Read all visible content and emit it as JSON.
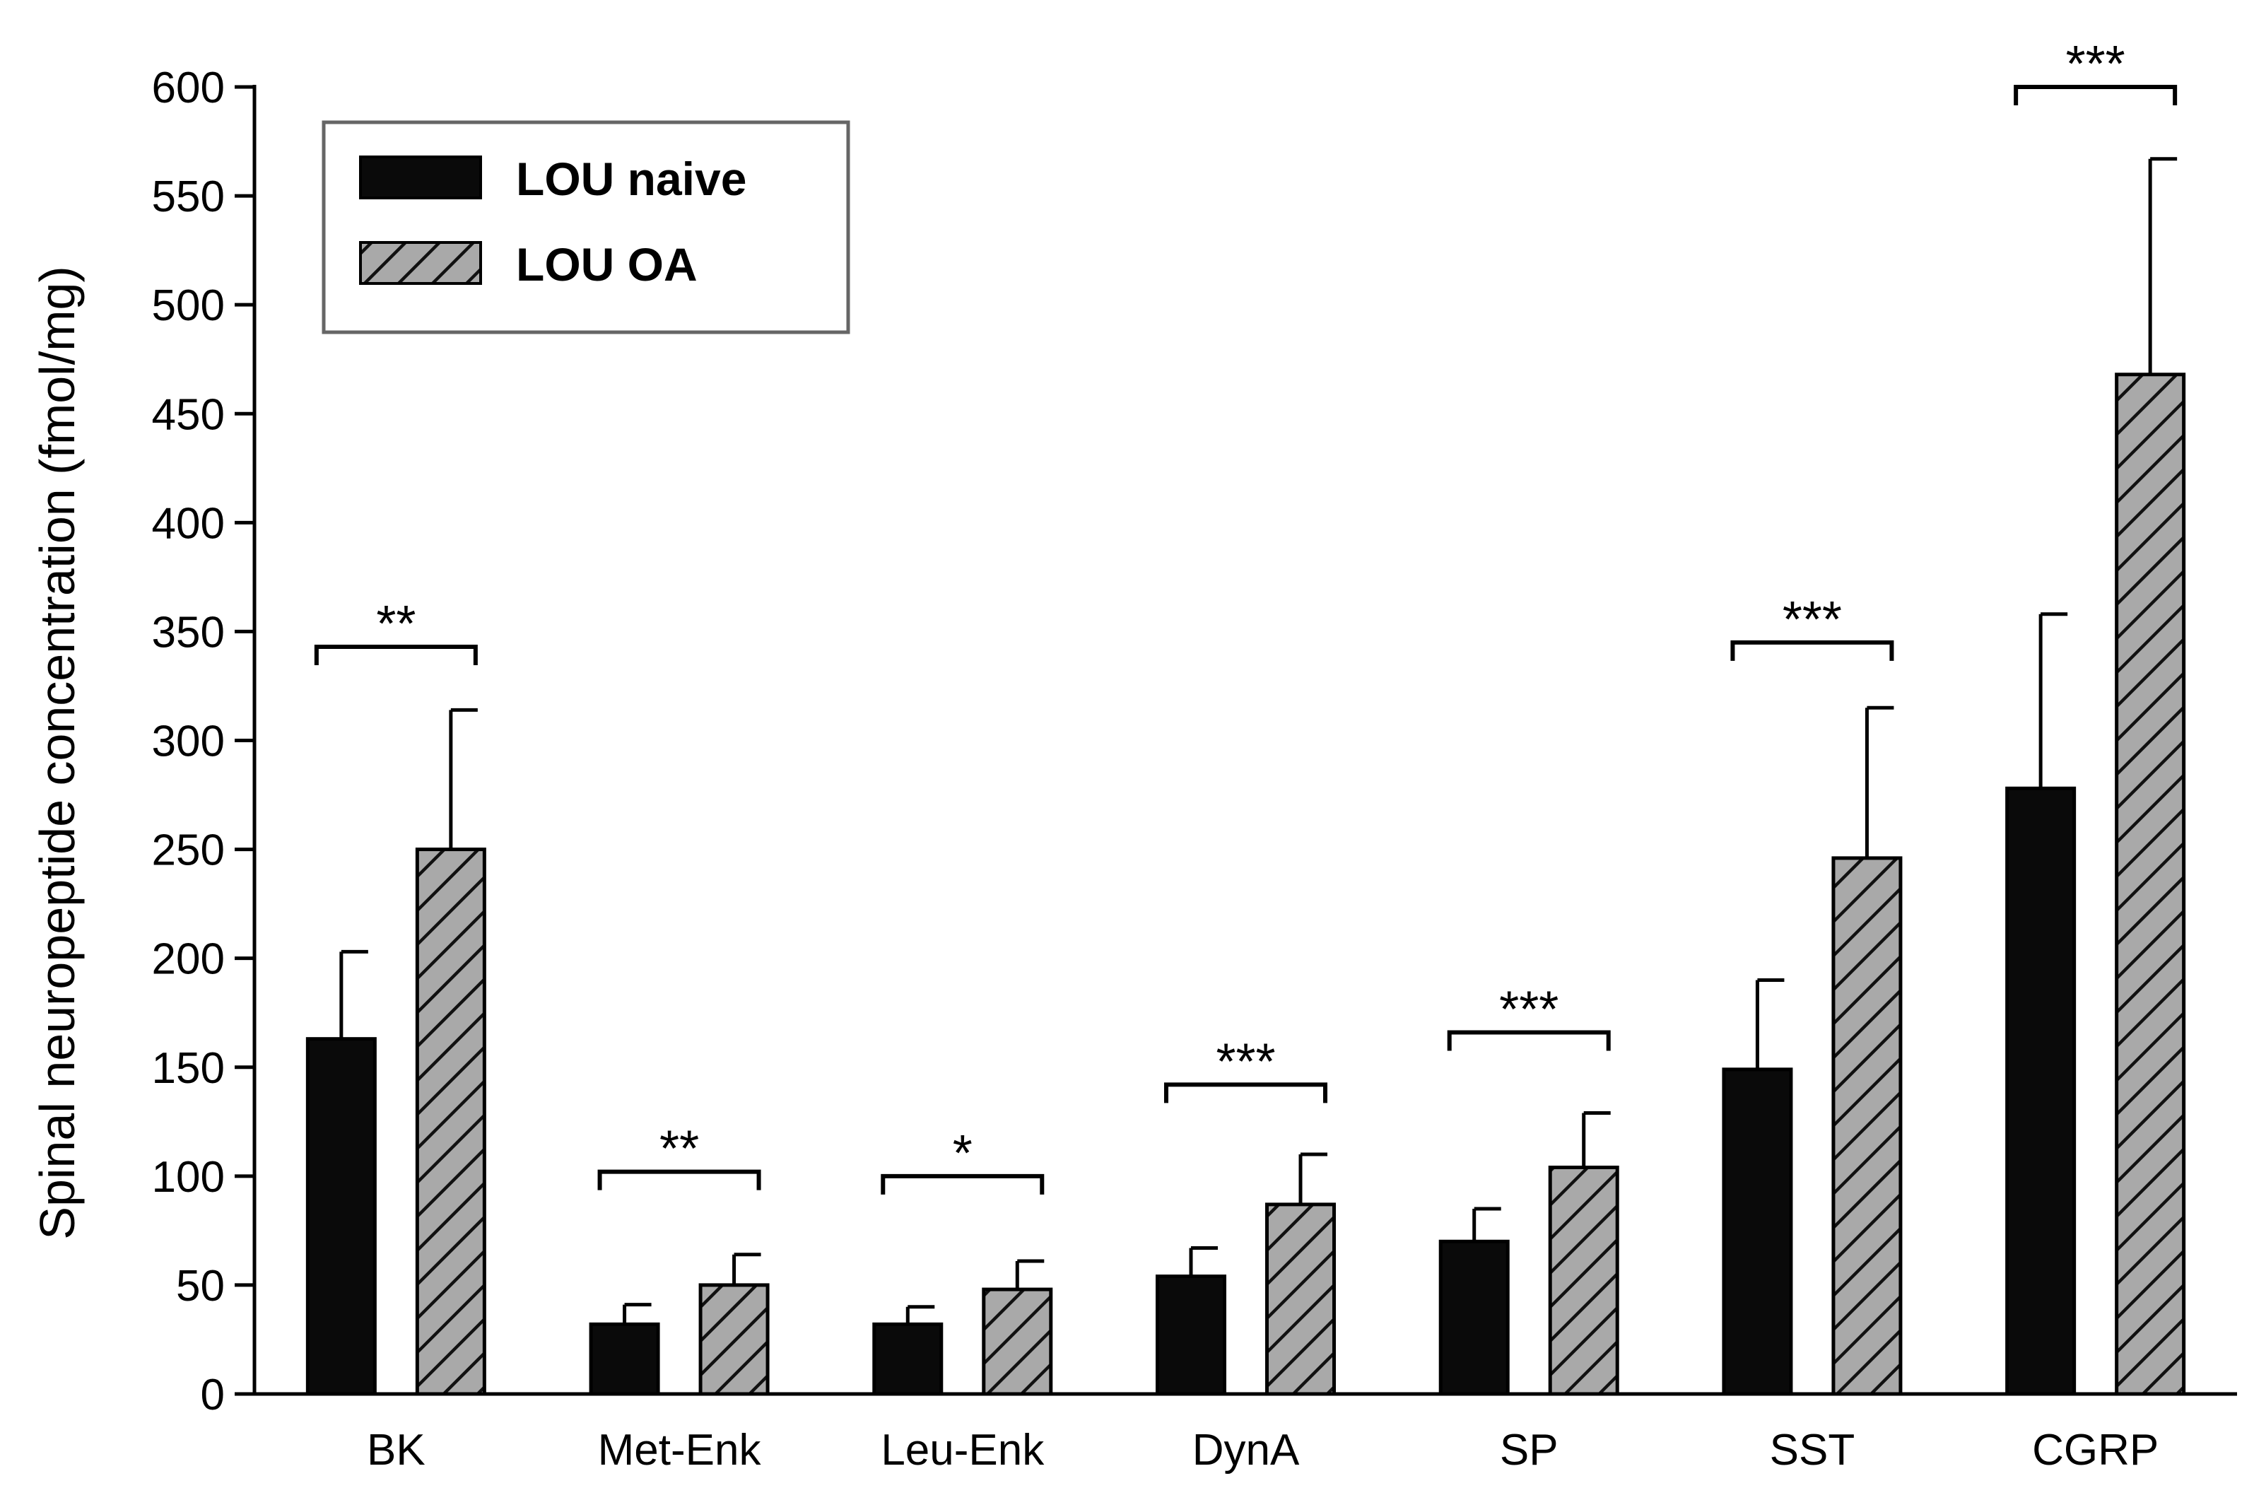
{
  "chart_data": {
    "type": "bar",
    "title": "",
    "xlabel": "",
    "ylabel": "Spinal neuropeptide concentration (fmol/mg)",
    "ylim": [
      0,
      600
    ],
    "yticks": [
      0,
      50,
      100,
      150,
      200,
      250,
      300,
      350,
      400,
      450,
      500,
      550,
      600
    ],
    "grid": false,
    "legend_position": "top-left",
    "categories": [
      "BK",
      "Met-Enk",
      "Leu-Enk",
      "DynA",
      "SP",
      "SST",
      "CGRP"
    ],
    "series": [
      {
        "name": "LOU naive",
        "color": "#0a0a0a",
        "pattern": "solid",
        "values": [
          163,
          32,
          32,
          54,
          70,
          149,
          278
        ],
        "errors": [
          40,
          9,
          8,
          13,
          15,
          41,
          80
        ]
      },
      {
        "name": "LOU OA",
        "color": "#a9a9a9",
        "pattern": "diagonal-hatch",
        "values": [
          250,
          50,
          48,
          87,
          104,
          246,
          468
        ],
        "errors": [
          64,
          14,
          13,
          23,
          25,
          69,
          99
        ]
      }
    ],
    "significance": [
      {
        "category": "BK",
        "label": "**",
        "bracket_y": 343
      },
      {
        "category": "Met-Enk",
        "label": "**",
        "bracket_y": 102
      },
      {
        "category": "Leu-Enk",
        "label": "*",
        "bracket_y": 100
      },
      {
        "category": "DynA",
        "label": "***",
        "bracket_y": 142
      },
      {
        "category": "SP",
        "label": "***",
        "bracket_y": 166
      },
      {
        "category": "SST",
        "label": "***",
        "bracket_y": 345
      },
      {
        "category": "CGRP",
        "label": "***",
        "bracket_y": 600
      }
    ]
  }
}
